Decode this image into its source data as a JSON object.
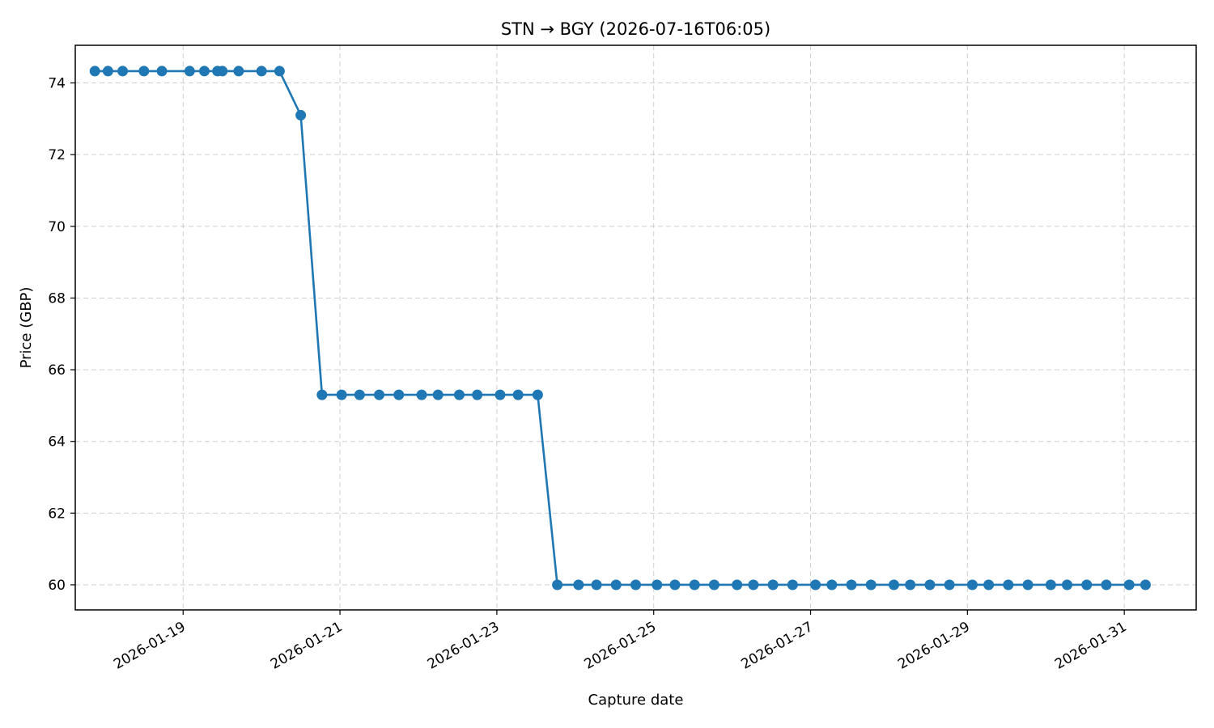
{
  "chart_data": {
    "type": "line",
    "title": "STN → BGY (2026-07-16T06:05)",
    "xlabel": "Capture date",
    "ylabel": "Price (GBP)",
    "ylim": [
      59.3,
      75.05
    ],
    "xlim": [
      "2026-01-17T15:00",
      "2026-01-31T22:00"
    ],
    "grid": true,
    "legend": "none",
    "x_ticks": [
      "2026-01-19",
      "2026-01-21",
      "2026-01-23",
      "2026-01-25",
      "2026-01-27",
      "2026-01-29",
      "2026-01-31"
    ],
    "y_ticks": [
      60,
      62,
      64,
      66,
      68,
      70,
      72,
      74
    ],
    "series_color": "#1f77b4",
    "series": [
      {
        "x": [
          "2026-01-17T21:00",
          "2026-01-18T01:00",
          "2026-01-18T05:30",
          "2026-01-18T12:00",
          "2026-01-18T17:30",
          "2026-01-19T02:00",
          "2026-01-19T06:30",
          "2026-01-19T10:30",
          "2026-01-19T12:00",
          "2026-01-19T17:00",
          "2026-01-20T00:00",
          "2026-01-20T05:30",
          "2026-01-20T12:00",
          "2026-01-20T18:30",
          "2026-01-21T00:30",
          "2026-01-21T06:00",
          "2026-01-21T12:00",
          "2026-01-21T18:00",
          "2026-01-22T01:00",
          "2026-01-22T06:00",
          "2026-01-22T12:30",
          "2026-01-22T18:00",
          "2026-01-23T01:00",
          "2026-01-23T06:30",
          "2026-01-23T12:30",
          "2026-01-23T18:30",
          "2026-01-24T01:00",
          "2026-01-24T06:30",
          "2026-01-24T12:30",
          "2026-01-24T18:30",
          "2026-01-25T01:00",
          "2026-01-25T06:30",
          "2026-01-25T12:30",
          "2026-01-25T18:30",
          "2026-01-26T01:30",
          "2026-01-26T06:30",
          "2026-01-26T12:30",
          "2026-01-26T18:30",
          "2026-01-27T01:30",
          "2026-01-27T06:30",
          "2026-01-27T12:30",
          "2026-01-27T18:30",
          "2026-01-28T01:30",
          "2026-01-28T06:30",
          "2026-01-28T12:30",
          "2026-01-28T18:30",
          "2026-01-29T01:30",
          "2026-01-29T06:30",
          "2026-01-29T12:30",
          "2026-01-29T18:30",
          "2026-01-30T01:30",
          "2026-01-30T06:30",
          "2026-01-30T12:30",
          "2026-01-30T18:30",
          "2026-01-31T01:30",
          "2026-01-31T06:30"
        ],
        "y": [
          74.33,
          74.33,
          74.33,
          74.33,
          74.33,
          74.33,
          74.33,
          74.33,
          74.33,
          74.33,
          74.33,
          74.33,
          73.1,
          65.3,
          65.3,
          65.3,
          65.3,
          65.3,
          65.3,
          65.3,
          65.3,
          65.3,
          65.3,
          65.3,
          65.3,
          60.0,
          60.0,
          60.0,
          60.0,
          60.0,
          60.0,
          60.0,
          60.0,
          60.0,
          60.0,
          60.0,
          60.0,
          60.0,
          60.0,
          60.0,
          60.0,
          60.0,
          60.0,
          60.0,
          60.0,
          60.0,
          60.0,
          60.0,
          60.0,
          60.0,
          60.0,
          60.0,
          60.0,
          60.0,
          60.0,
          60.0
        ]
      }
    ]
  }
}
